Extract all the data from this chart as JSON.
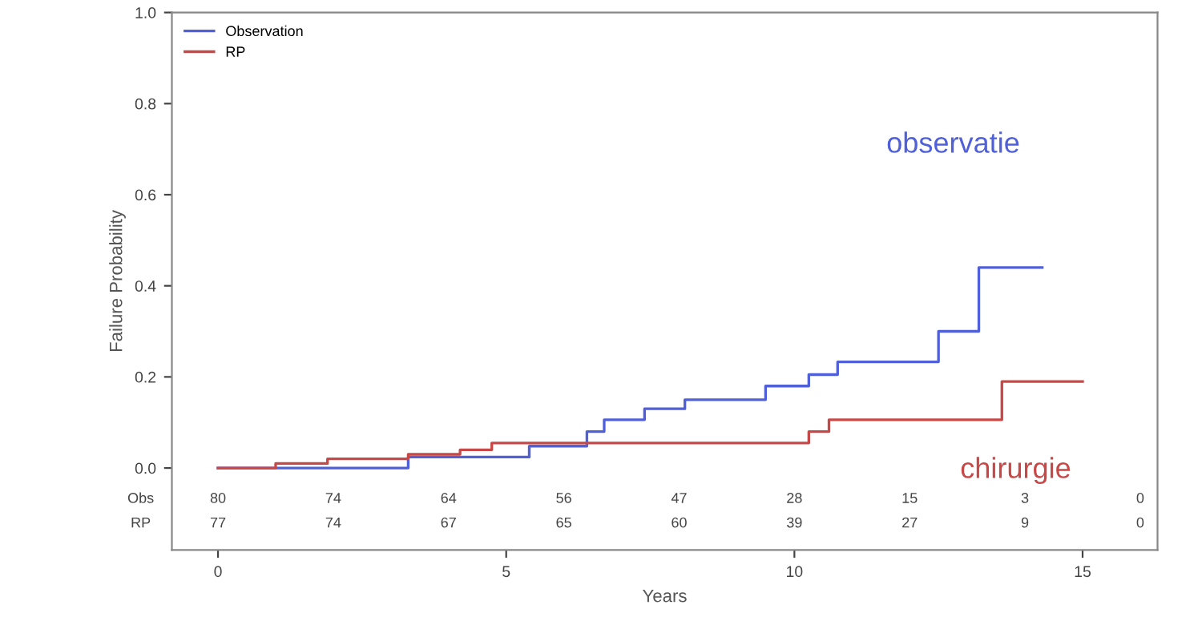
{
  "chart_data": {
    "type": "step",
    "xlabel": "Years",
    "ylabel": "Failure Probability",
    "xlim": [
      -0.8,
      16.3
    ],
    "ylim": [
      -0.18,
      1.0
    ],
    "xticks": [
      0,
      5,
      10,
      15
    ],
    "yticks": [
      {
        "value": 0,
        "label": "0.0"
      },
      {
        "value": 0.2,
        "label": "0.2"
      },
      {
        "value": 0.4,
        "label": "0.4"
      },
      {
        "value": 0.6,
        "label": "0.6"
      },
      {
        "value": 0.8,
        "label": "0.8"
      },
      {
        "value": 1.0,
        "label": "1.0"
      }
    ],
    "grid": false,
    "legend": "top left",
    "marker": "none",
    "line_style": "solid",
    "series": [
      {
        "name": "Observation",
        "color": "#5060d8",
        "x": [
          0,
          3.3,
          5.4,
          6.4,
          6.7,
          7.4,
          8.1,
          9.5,
          10.25,
          10.75,
          12.5,
          13.2,
          14.3
        ],
        "values": [
          0,
          0.024,
          0.048,
          0.08,
          0.106,
          0.13,
          0.15,
          0.18,
          0.205,
          0.233,
          0.3,
          0.44,
          0.44
        ]
      },
      {
        "name": "RP",
        "color": "#c84848",
        "x": [
          0,
          1.0,
          1.9,
          3.3,
          4.2,
          4.75,
          10.25,
          10.6,
          13.6,
          15.0
        ],
        "values": [
          0,
          0.01,
          0.02,
          0.03,
          0.04,
          0.055,
          0.08,
          0.106,
          0.19,
          0.19
        ]
      }
    ],
    "annotations": [
      "observatie",
      "chirurgie",
      "Obs",
      "80",
      "74",
      "64",
      "56",
      "47",
      "28",
      "15",
      "3",
      "0",
      "RP",
      "77",
      "74",
      "67",
      "65",
      "60",
      "39",
      "27",
      "9",
      "0"
    ]
  }
}
